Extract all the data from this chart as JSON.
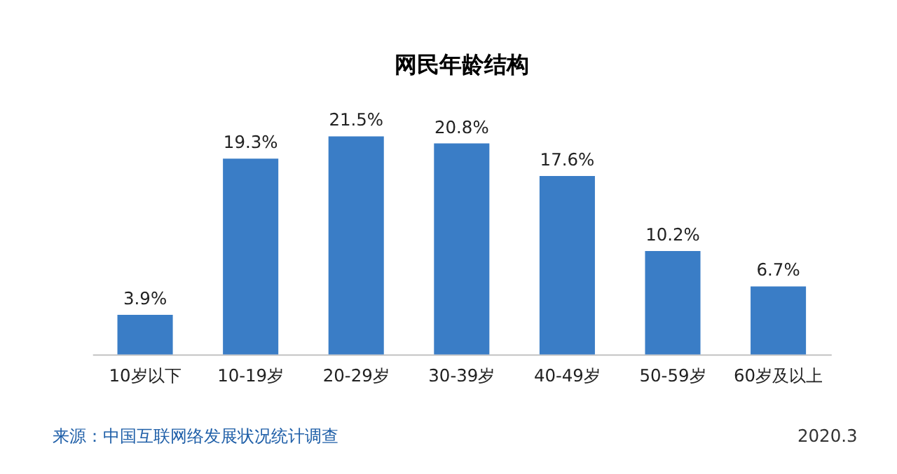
{
  "chart_data": {
    "type": "bar",
    "title": "网民年龄结构",
    "categories": [
      "10岁以下",
      "10-19岁",
      "20-29岁",
      "30-39岁",
      "40-49岁",
      "50-59岁",
      "60岁及以上"
    ],
    "values": [
      3.9,
      19.3,
      21.5,
      20.8,
      17.6,
      10.2,
      6.7
    ],
    "value_labels": [
      "3.9%",
      "19.3%",
      "21.5%",
      "20.8%",
      "17.6%",
      "10.2%",
      "6.7%"
    ],
    "color": "#3a7dc6",
    "annotations": [
      "来源：中国互联网络发展状况统计调查",
      "2020.3"
    ],
    "grid": false
  }
}
